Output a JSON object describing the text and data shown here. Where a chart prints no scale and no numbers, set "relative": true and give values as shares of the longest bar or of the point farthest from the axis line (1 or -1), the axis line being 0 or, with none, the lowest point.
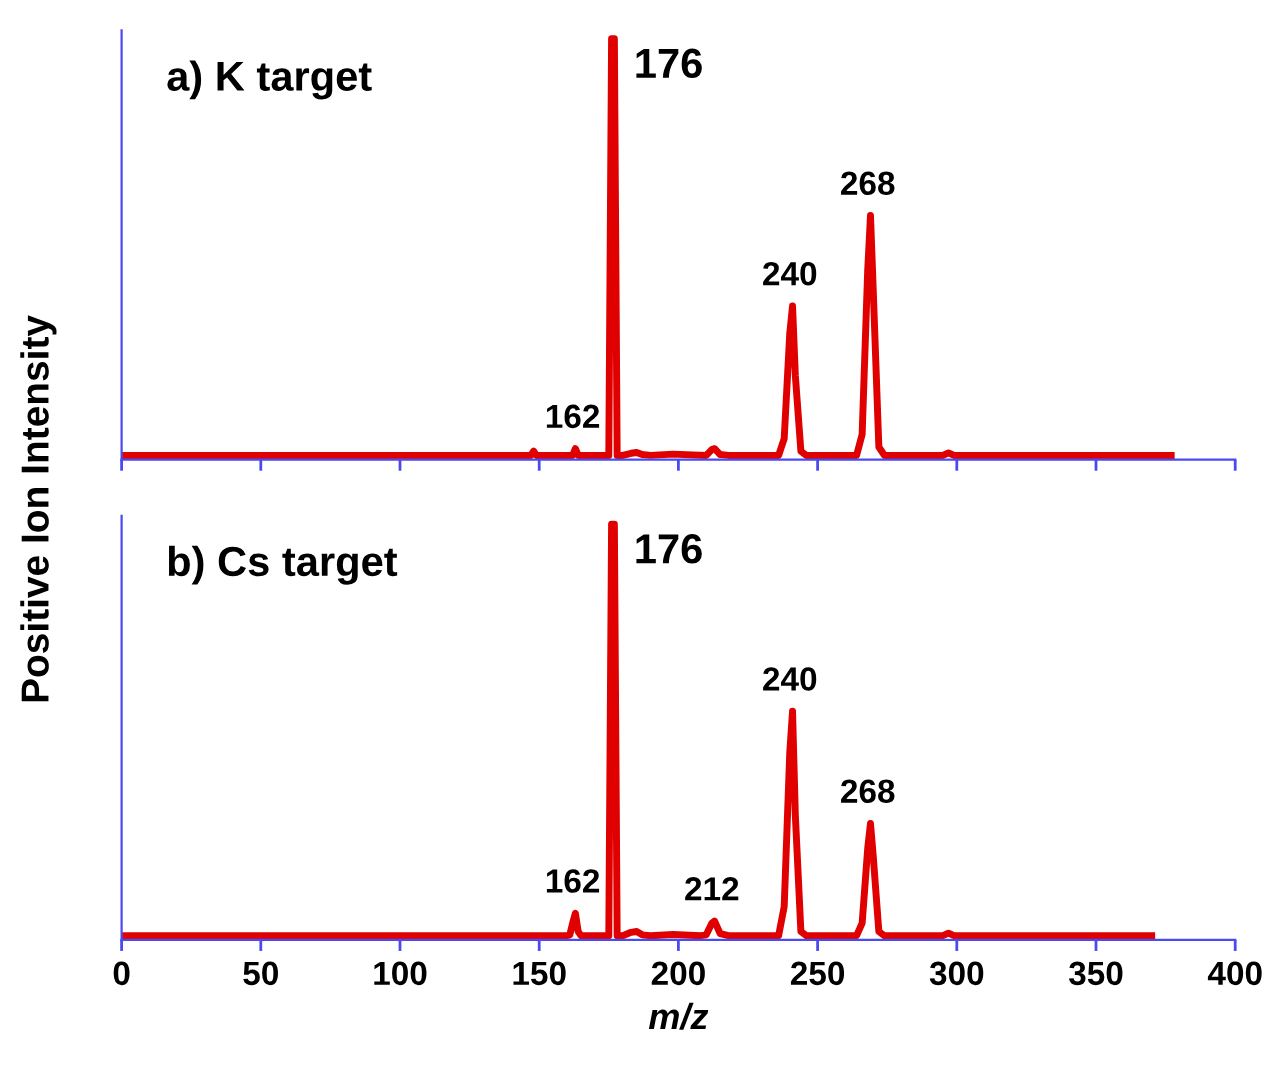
{
  "chart_data": [
    {
      "type": "line",
      "title": "a) K target",
      "ylabel": "Positive Ion Intensity",
      "relative": true,
      "xlim": [
        0,
        400
      ],
      "xticks": [
        0,
        50,
        100,
        150,
        200,
        250,
        300,
        350,
        400
      ],
      "tick_labels": false,
      "grid": false,
      "legend": false,
      "series": [
        {
          "color": "#e00000",
          "x": [
            0,
            100,
            145,
            147,
            148,
            149,
            151,
            160,
            162,
            163,
            164,
            166,
            174,
            175,
            176,
            177,
            178,
            180,
            183,
            185,
            187,
            190,
            198,
            210,
            212,
            213,
            215,
            218,
            236,
            238,
            240,
            241,
            242,
            244,
            246,
            264,
            266,
            268,
            269,
            270,
            272,
            274,
            295,
            297,
            299,
            377
          ],
          "values": [
            0.01,
            0.01,
            0.01,
            0.01,
            0.02,
            0.01,
            0.01,
            0.01,
            0.01,
            0.026,
            0.01,
            0.01,
            0.01,
            0.01,
            1.0,
            1.0,
            0.01,
            0.01,
            0.015,
            0.017,
            0.012,
            0.01,
            0.013,
            0.01,
            0.024,
            0.026,
            0.012,
            0.01,
            0.01,
            0.05,
            0.3,
            0.365,
            0.2,
            0.02,
            0.01,
            0.01,
            0.06,
            0.45,
            0.58,
            0.4,
            0.03,
            0.01,
            0.01,
            0.016,
            0.01,
            0.01
          ]
        }
      ],
      "annotations": [
        {
          "text": "162",
          "x": 162,
          "y": 0.026
        },
        {
          "text": "176",
          "x": 176,
          "y": 1.0
        },
        {
          "text": "240",
          "x": 240,
          "y": 0.365
        },
        {
          "text": "268",
          "x": 268,
          "y": 0.58
        }
      ]
    },
    {
      "type": "line",
      "title": "b) Cs target",
      "xlabel": "m/z",
      "relative": true,
      "xlim": [
        0,
        400
      ],
      "xticks": [
        0,
        50,
        100,
        150,
        200,
        250,
        300,
        350,
        400
      ],
      "tick_labels": "x",
      "grid": false,
      "legend": false,
      "series": [
        {
          "color": "#e00000",
          "x": [
            0,
            100,
            140,
            160,
            161,
            162,
            163,
            164,
            165,
            174,
            175,
            176,
            177,
            178,
            180,
            183,
            185,
            187,
            190,
            198,
            208,
            210,
            212,
            213,
            215,
            218,
            236,
            238,
            240,
            241,
            242,
            244,
            246,
            264,
            266,
            268,
            269,
            270,
            272,
            274,
            295,
            297,
            299,
            370
          ],
          "values": [
            0.01,
            0.01,
            0.01,
            0.01,
            0.012,
            0.04,
            0.064,
            0.02,
            0.01,
            0.01,
            0.01,
            1.0,
            1.0,
            0.01,
            0.01,
            0.018,
            0.02,
            0.012,
            0.01,
            0.013,
            0.01,
            0.012,
            0.04,
            0.045,
            0.015,
            0.01,
            0.01,
            0.08,
            0.45,
            0.55,
            0.3,
            0.02,
            0.01,
            0.01,
            0.04,
            0.22,
            0.28,
            0.2,
            0.02,
            0.01,
            0.01,
            0.016,
            0.01,
            0.01
          ]
        }
      ],
      "annotations": [
        {
          "text": "162",
          "x": 162,
          "y": 0.064
        },
        {
          "text": "176",
          "x": 176,
          "y": 1.0
        },
        {
          "text": "212",
          "x": 212,
          "y": 0.045
        },
        {
          "text": "240",
          "x": 240,
          "y": 0.55
        },
        {
          "text": "268",
          "x": 268,
          "y": 0.28
        }
      ]
    }
  ]
}
